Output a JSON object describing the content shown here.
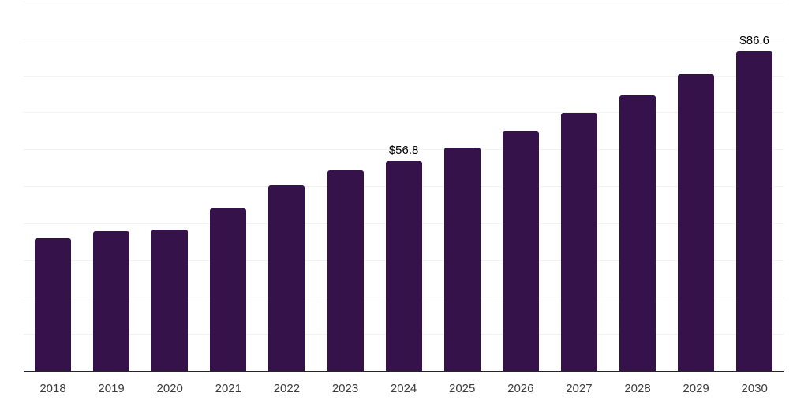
{
  "chart_data": {
    "type": "bar",
    "title": "",
    "xlabel": "",
    "ylabel": "",
    "categories": [
      "2018",
      "2019",
      "2020",
      "2021",
      "2022",
      "2023",
      "2024",
      "2025",
      "2026",
      "2027",
      "2028",
      "2029",
      "2030"
    ],
    "values": [
      35.8,
      37.8,
      38.2,
      44.0,
      50.3,
      54.3,
      56.8,
      60.4,
      64.9,
      69.8,
      74.5,
      80.3,
      86.6
    ],
    "bar_labels": [
      "",
      "",
      "",
      "",
      "",
      "",
      "$56.8",
      "",
      "",
      "",
      "",
      "",
      "$86.6"
    ],
    "ylim": [
      0,
      100
    ],
    "gridline_step": 10,
    "grid": true,
    "legend": false,
    "y_tick_labels_shown": false,
    "colors": {
      "bar": "#36124a",
      "gridline": "#f2f2f2",
      "axis_line": "#262626",
      "tick_label": "#3c3c3c",
      "data_label": "#000000"
    }
  }
}
